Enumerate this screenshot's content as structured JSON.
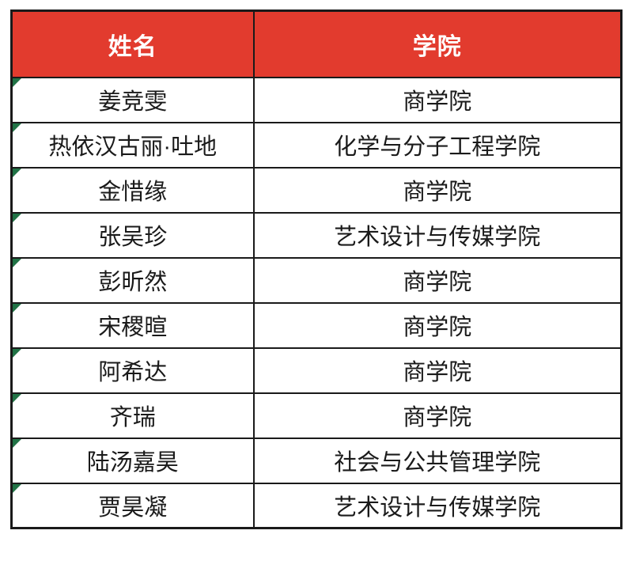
{
  "table": {
    "columns": [
      {
        "label": "姓名"
      },
      {
        "label": "学院"
      }
    ],
    "rows": [
      {
        "name": "姜竞雯",
        "college": "商学院"
      },
      {
        "name": "热依汉古丽·吐地",
        "college": "化学与分子工程学院"
      },
      {
        "name": "金惜缘",
        "college": "商学院"
      },
      {
        "name": "张吴珍",
        "college": "艺术设计与传媒学院"
      },
      {
        "name": "彭昕然",
        "college": "商学院"
      },
      {
        "name": "宋稷暄",
        "college": "商学院"
      },
      {
        "name": "阿希达",
        "college": "商学院"
      },
      {
        "name": "齐瑞",
        "college": "商学院"
      },
      {
        "name": "陆汤嘉昊",
        "college": "社会与公共管理学院"
      },
      {
        "name": "贾昊凝",
        "college": "艺术设计与传媒学院"
      }
    ],
    "colors": {
      "header_bg": "#E23B2E",
      "header_text": "#FFFFFF",
      "border": "#1A1A1A",
      "cell_text": "#1A1A1A",
      "error_indicator": "#217346"
    }
  }
}
